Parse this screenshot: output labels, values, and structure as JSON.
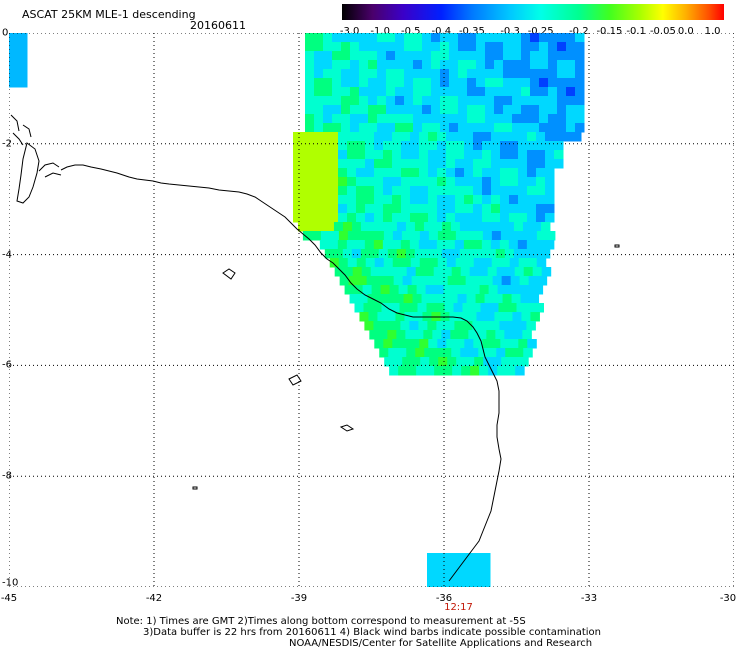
{
  "header": {
    "title": "ASCAT 25KM MLE-1 descending",
    "date": "20160611"
  },
  "colorbar": {
    "labels": [
      "-3.0",
      "-1.0",
      "-0.5",
      "-0.4",
      "-0.35",
      "-0.3",
      "-0.25",
      "-0.2",
      "-0.15",
      "-0.1",
      "-0.05",
      "0.0",
      "1.0"
    ],
    "label_fractions": [
      0.02,
      0.1,
      0.18,
      0.26,
      0.34,
      0.44,
      0.52,
      0.62,
      0.7,
      0.77,
      0.84,
      0.9,
      0.97
    ]
  },
  "map": {
    "lon_range": [
      -45,
      -30
    ],
    "lat_range": [
      -10,
      0
    ],
    "x_ticks": [
      "-45",
      "-42",
      "-39",
      "-36",
      "-33",
      "-30"
    ],
    "x_tick_values": [
      -45,
      -42,
      -39,
      -36,
      -33,
      -30
    ],
    "y_ticks": [
      "0",
      "-2",
      "-4",
      "-6",
      "-8",
      "-10"
    ],
    "y_tick_values": [
      0,
      -2,
      -4,
      -6,
      -8,
      -10
    ],
    "grid": "dotted",
    "coastline_color": "#000000",
    "time_label": "12:17",
    "time_label_lon": -35.7,
    "time_label_color": "#c21807"
  },
  "notes": {
    "line1": "Note: 1) Times are GMT 2)Times along bottom correspond to measurement at -5S",
    "line2": "3)Data buffer is 22 hrs from 20160611 4) Black wind barbs indicate possible contamination",
    "line3": "NOAA/NESDIS/Center for Satellite Applications and Research"
  }
}
